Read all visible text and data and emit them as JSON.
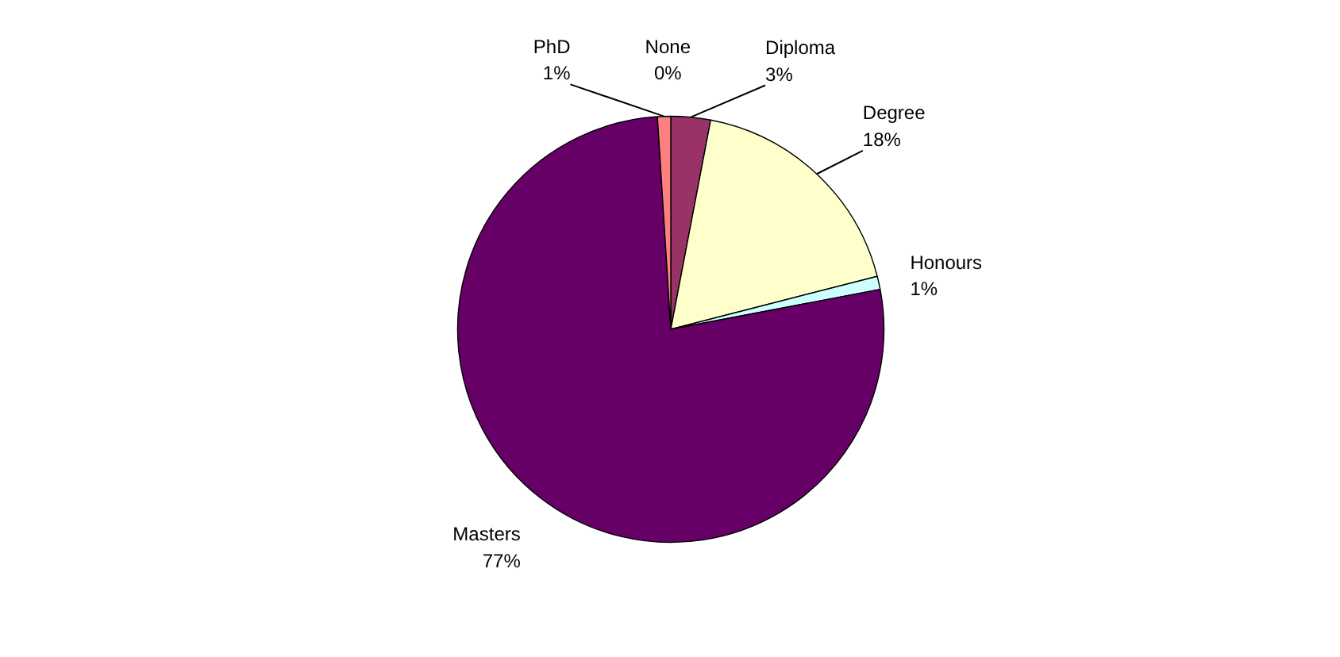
{
  "chart_data": {
    "type": "pie",
    "categories": [
      "None",
      "Diploma",
      "Degree",
      "Honours",
      "Masters",
      "PhD"
    ],
    "values": [
      0,
      3,
      18,
      1,
      77,
      1
    ],
    "value_labels": [
      "0%",
      "3%",
      "18%",
      "1%",
      "77%",
      "1%"
    ],
    "colors": [
      "#9999ff",
      "#993366",
      "#ffffcc",
      "#ccffff",
      "#660066",
      "#ff8080"
    ]
  }
}
